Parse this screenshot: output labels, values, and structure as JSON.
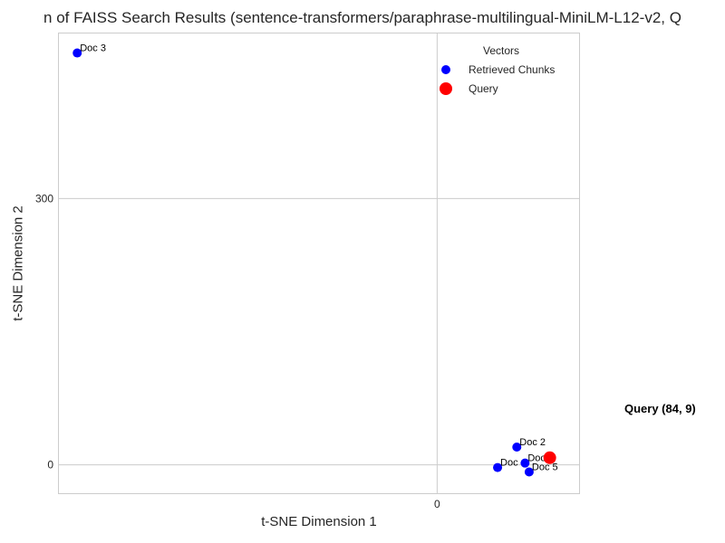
{
  "chart_data": {
    "type": "scatter",
    "title": "n of FAISS Search Results (sentence-transformers/paraphrase-multilingual-MiniLM-L12-v2, Q",
    "xlabel": "t-SNE Dimension 1",
    "ylabel": "t-SNE Dimension 2",
    "xlim": [
      -138,
      52
    ],
    "ylim": [
      -33,
      487
    ],
    "x_ticks": [
      0
    ],
    "y_ticks": [
      0,
      300
    ],
    "grid": true,
    "legend": {
      "title": "Vectors",
      "placement": "top-right",
      "entries": [
        {
          "label": "Retrieved Chunks",
          "color": "#0000ff",
          "marker": "small-circle"
        },
        {
          "label": "Query",
          "color": "#ff0000",
          "marker": "large-circle"
        }
      ]
    },
    "series": [
      {
        "name": "Retrieved Chunks",
        "color": "#0000ff",
        "points": [
          {
            "x": -131,
            "y": 464,
            "label": "Doc 3"
          },
          {
            "x": 29,
            "y": 20,
            "label": "Doc 2"
          },
          {
            "x": 32,
            "y": 2,
            "label": "Doc"
          },
          {
            "x": 22,
            "y": -3,
            "label": "Doc"
          },
          {
            "x": 33.5,
            "y": -8,
            "label": "Doc 5"
          }
        ]
      },
      {
        "name": "Query",
        "color": "#ff0000",
        "points": [
          {
            "x": 41,
            "y": 8,
            "label": ""
          }
        ]
      }
    ],
    "annotation": "Query (84, 9)"
  }
}
